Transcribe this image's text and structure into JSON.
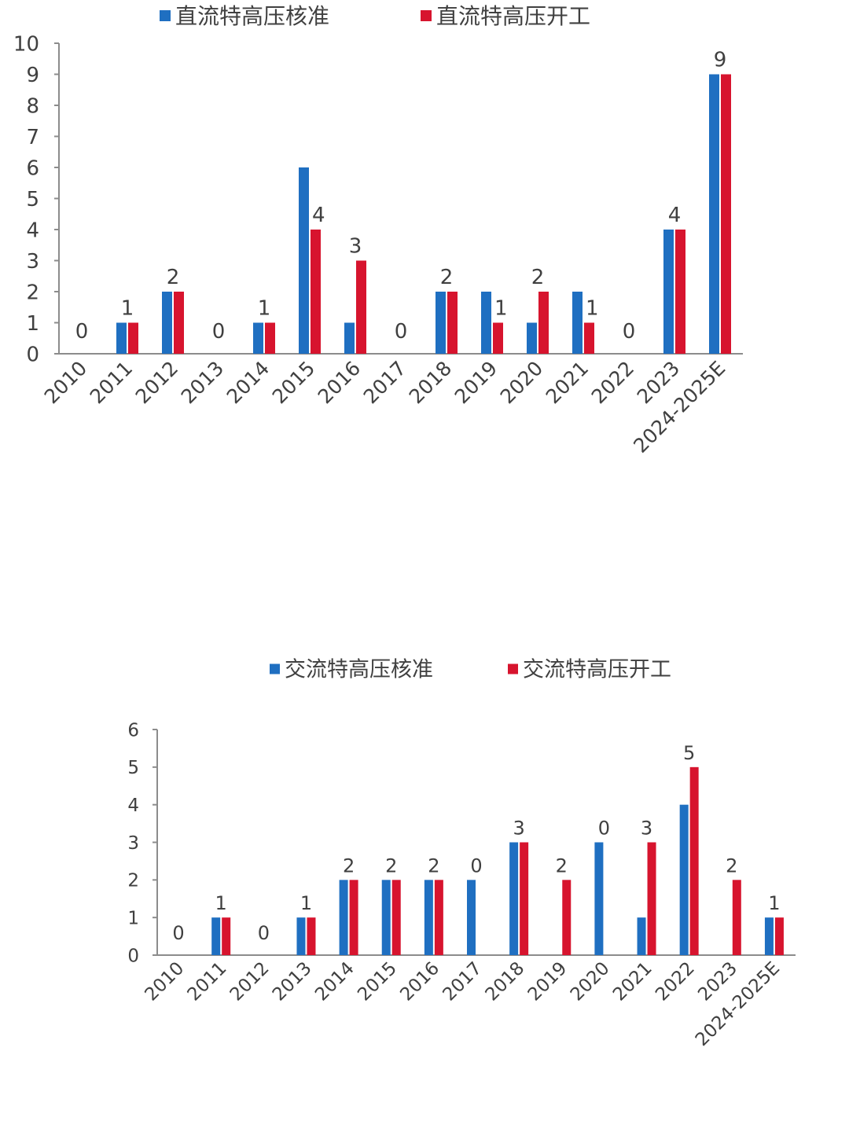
{
  "colors": {
    "approve": "#1f6fc1",
    "start": "#d7142e",
    "axis": "#8c8c8c",
    "text": "#404040"
  },
  "chart_data": [
    {
      "type": "bar",
      "categories": [
        "2010",
        "2011",
        "2012",
        "2013",
        "2014",
        "2015",
        "2016",
        "2017",
        "2018",
        "2019",
        "2020",
        "2021",
        "2022",
        "2023",
        "2024-2025E"
      ],
      "series": [
        {
          "name": "直流特高压核准",
          "values": [
            0,
            1,
            2,
            0,
            1,
            6,
            1,
            0,
            2,
            2,
            1,
            2,
            0,
            4,
            9
          ]
        },
        {
          "name": "直流特高压开工",
          "values": [
            0,
            1,
            2,
            0,
            1,
            4,
            3,
            0,
            2,
            1,
            2,
            1,
            0,
            4,
            9
          ]
        }
      ],
      "data_labels": [
        0,
        1,
        2,
        0,
        1,
        4,
        3,
        0,
        2,
        1,
        2,
        1,
        0,
        4,
        9
      ],
      "yticks": [
        0,
        1,
        2,
        3,
        4,
        5,
        6,
        7,
        8,
        9,
        10
      ],
      "ylim": [
        0,
        10
      ],
      "legend": "top",
      "grid": false
    },
    {
      "type": "bar",
      "categories": [
        "2010",
        "2011",
        "2012",
        "2013",
        "2014",
        "2015",
        "2016",
        "2017",
        "2018",
        "2019",
        "2020",
        "2021",
        "2022",
        "2023",
        "2024-2025E"
      ],
      "series": [
        {
          "name": "交流特高压核准",
          "values": [
            0,
            1,
            0,
            1,
            2,
            2,
            2,
            2,
            3,
            0,
            3,
            1,
            4,
            0,
            1
          ]
        },
        {
          "name": "交流特高压开工",
          "values": [
            0,
            1,
            0,
            1,
            2,
            2,
            2,
            0,
            3,
            2,
            0,
            3,
            5,
            2,
            1
          ]
        }
      ],
      "data_labels": [
        0,
        1,
        0,
        1,
        2,
        2,
        2,
        0,
        3,
        2,
        0,
        3,
        5,
        2,
        1
      ],
      "yticks": [
        0,
        1,
        2,
        3,
        4,
        5,
        6
      ],
      "ylim": [
        0,
        6
      ],
      "legend": "top",
      "grid": false
    }
  ]
}
